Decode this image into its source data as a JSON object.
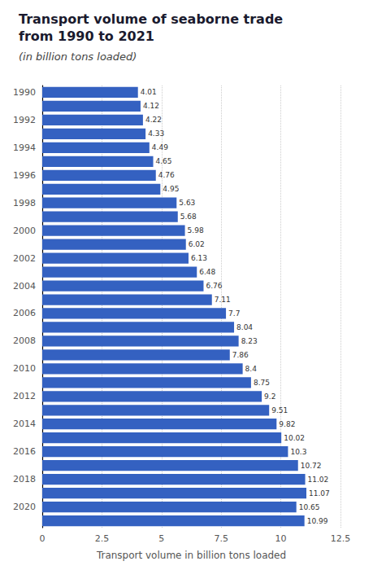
{
  "chart_data": {
    "type": "bar",
    "title": "Transport volume of seaborne trade\nfrom 1990 to 2021",
    "subtitle": "(in billion tons loaded)",
    "xlabel": "Transport volume in billion tons loaded",
    "orientation": "horizontal",
    "categories": [
      "1990",
      null,
      "1992",
      null,
      "1994",
      null,
      "1996",
      null,
      "1998",
      null,
      "2000",
      null,
      "2002",
      null,
      "2004",
      null,
      "2006",
      null,
      "2008",
      null,
      "2010",
      null,
      "2012",
      null,
      "2014",
      null,
      "2016",
      null,
      "2018",
      null,
      "2020",
      null
    ],
    "values": [
      4.01,
      4.12,
      4.22,
      4.33,
      4.49,
      4.65,
      4.76,
      4.95,
      5.63,
      5.68,
      5.98,
      6.02,
      6.13,
      6.48,
      6.76,
      7.11,
      7.7,
      8.04,
      8.23,
      7.86,
      8.4,
      8.75,
      9.2,
      9.51,
      9.82,
      10.02,
      10.3,
      10.72,
      11.02,
      11.07,
      10.65,
      10.99
    ],
    "color": "#3461c1",
    "xlim": [
      0,
      12.5
    ],
    "xticks": [
      0,
      2.5,
      5,
      7.5,
      10,
      12.5
    ],
    "grid": true,
    "data_labels": true
  }
}
